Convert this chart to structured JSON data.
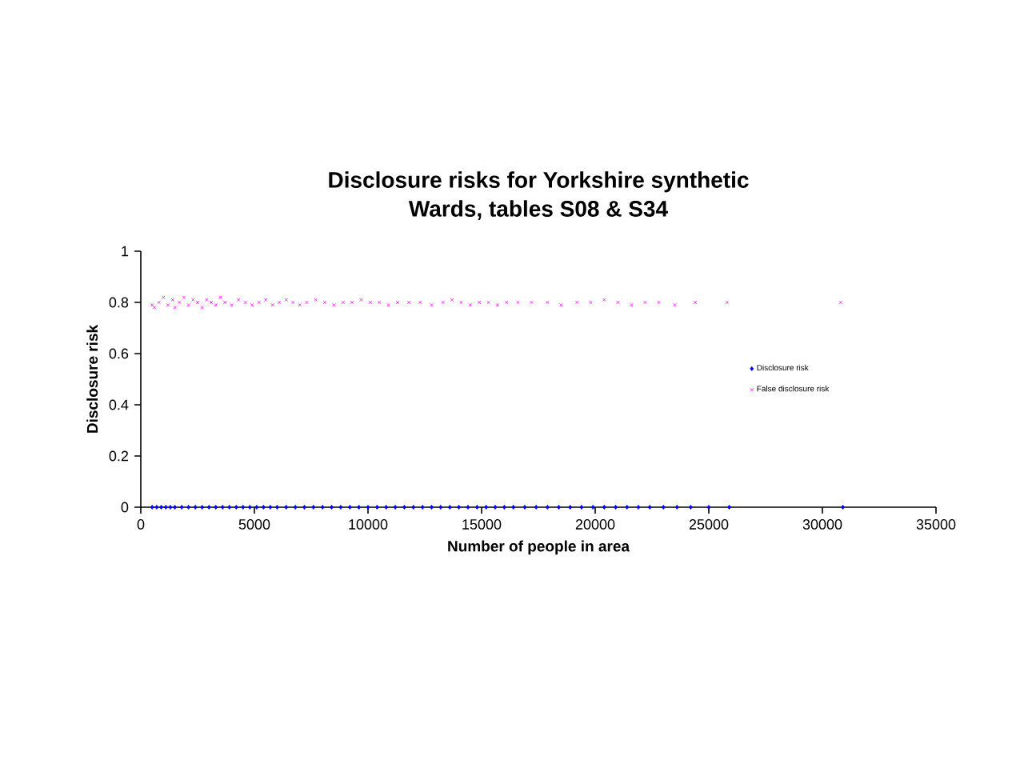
{
  "chart_data": {
    "type": "scatter",
    "title": "Disclosure risks for Yorkshire synthetic Wards, tables S08 & S34",
    "xlabel": "Number of people in area",
    "ylabel": "Disclosure risk",
    "xlim": [
      0,
      35000
    ],
    "xticks": [
      0,
      5000,
      10000,
      15000,
      20000,
      25000,
      30000,
      35000
    ],
    "ylim": [
      0,
      1
    ],
    "yticks": [
      0,
      0.2,
      0.4,
      0.6,
      0.8,
      1
    ],
    "legend": "right",
    "grid": false,
    "series": [
      {
        "name": "Disclosure risk",
        "color": "#0000ff",
        "marker": "diamond",
        "x": [
          500,
          700,
          900,
          1100,
          1300,
          1500,
          1800,
          2100,
          2400,
          2700,
          3000,
          3300,
          3600,
          3900,
          4200,
          4500,
          4800,
          5100,
          5400,
          5700,
          6000,
          6400,
          6800,
          7200,
          7600,
          8000,
          8400,
          8800,
          9200,
          9600,
          10000,
          10400,
          10800,
          11200,
          11600,
          12000,
          12400,
          12800,
          13200,
          13600,
          14000,
          14400,
          14800,
          15200,
          15600,
          16000,
          16400,
          16900,
          17400,
          17900,
          18400,
          18900,
          19400,
          19900,
          20400,
          20900,
          21400,
          21900,
          22400,
          23000,
          23600,
          24200,
          25000,
          25900,
          30900
        ],
        "values": [
          0,
          0,
          0,
          0,
          0,
          0,
          0,
          0,
          0,
          0,
          0,
          0,
          0,
          0,
          0,
          0,
          0,
          0,
          0,
          0,
          0,
          0,
          0,
          0,
          0,
          0,
          0,
          0,
          0,
          0,
          0,
          0,
          0,
          0,
          0,
          0,
          0,
          0,
          0,
          0,
          0,
          0,
          0,
          0,
          0,
          0,
          0,
          0,
          0,
          0,
          0,
          0,
          0,
          0,
          0,
          0,
          0,
          0,
          0,
          0,
          0,
          0,
          0,
          0,
          0
        ]
      },
      {
        "name": "False disclosure risk",
        "color": "#ff00ff",
        "marker": "cross",
        "x": [
          500,
          600,
          800,
          1000,
          1200,
          1400,
          1500,
          1700,
          1900,
          2100,
          2300,
          2500,
          2700,
          2900,
          3100,
          3300,
          3500,
          3700,
          4000,
          4300,
          4600,
          4900,
          5200,
          5500,
          5800,
          6100,
          6400,
          6700,
          7000,
          7300,
          7700,
          8100,
          8500,
          8900,
          9300,
          9700,
          10100,
          10500,
          10900,
          11300,
          11800,
          12300,
          12800,
          13300,
          13700,
          14100,
          14500,
          14900,
          15300,
          15700,
          16100,
          16600,
          17200,
          17900,
          18500,
          19200,
          19800,
          20400,
          21000,
          21600,
          22200,
          22800,
          23500,
          24400,
          25800,
          30800
        ],
        "values": [
          0.79,
          0.78,
          0.8,
          0.82,
          0.79,
          0.81,
          0.78,
          0.8,
          0.82,
          0.79,
          0.81,
          0.8,
          0.78,
          0.81,
          0.8,
          0.79,
          0.82,
          0.8,
          0.79,
          0.81,
          0.8,
          0.79,
          0.8,
          0.81,
          0.79,
          0.8,
          0.81,
          0.8,
          0.79,
          0.8,
          0.81,
          0.8,
          0.79,
          0.8,
          0.8,
          0.81,
          0.8,
          0.8,
          0.79,
          0.8,
          0.8,
          0.8,
          0.79,
          0.8,
          0.81,
          0.8,
          0.79,
          0.8,
          0.8,
          0.79,
          0.8,
          0.8,
          0.8,
          0.8,
          0.79,
          0.8,
          0.8,
          0.81,
          0.8,
          0.79,
          0.8,
          0.8,
          0.79,
          0.8,
          0.8,
          0.8
        ]
      }
    ]
  }
}
